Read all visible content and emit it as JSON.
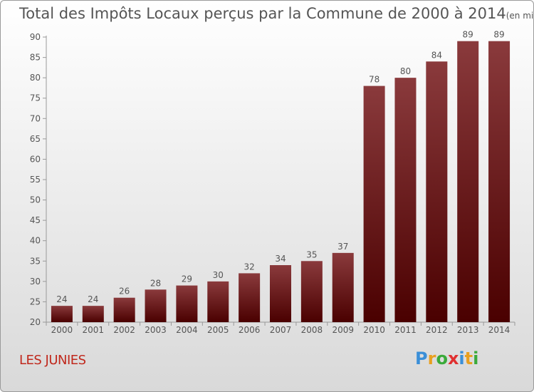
{
  "title": "Total des Impôts Locaux perçus par la Commune de 2000 à 2014",
  "unit_note": "(en milliers d'€)",
  "commune_name": "LES JUNIES",
  "logo": {
    "letters": [
      "P",
      "r",
      "o",
      "x",
      "i",
      "t",
      "i"
    ],
    "colors": [
      "#3a8fd8",
      "#e8a020",
      "#3aaa3a",
      "#e03030",
      "#3a8fd8",
      "#e8a020",
      "#3aaa3a"
    ]
  },
  "colors": {
    "bar_top": "#8a3a3c",
    "bar_bottom": "#4a0000",
    "axis": "#999999",
    "label": "#555555"
  },
  "chart_data": {
    "type": "bar",
    "title": "Total des Impôts Locaux perçus par la Commune de 2000 à 2014",
    "xlabel": "",
    "ylabel": "",
    "categories": [
      "2000",
      "2001",
      "2002",
      "2003",
      "2004",
      "2005",
      "2006",
      "2007",
      "2008",
      "2009",
      "2010",
      "2011",
      "2012",
      "2013",
      "2014"
    ],
    "values": [
      24,
      24,
      26,
      28,
      29,
      30,
      32,
      34,
      35,
      37,
      78,
      80,
      84,
      89,
      89
    ],
    "ylim": [
      20,
      90
    ],
    "yticks": [
      20,
      25,
      30,
      35,
      40,
      45,
      50,
      55,
      60,
      65,
      70,
      75,
      80,
      85,
      90
    ],
    "grid": false,
    "data_labels": true
  }
}
